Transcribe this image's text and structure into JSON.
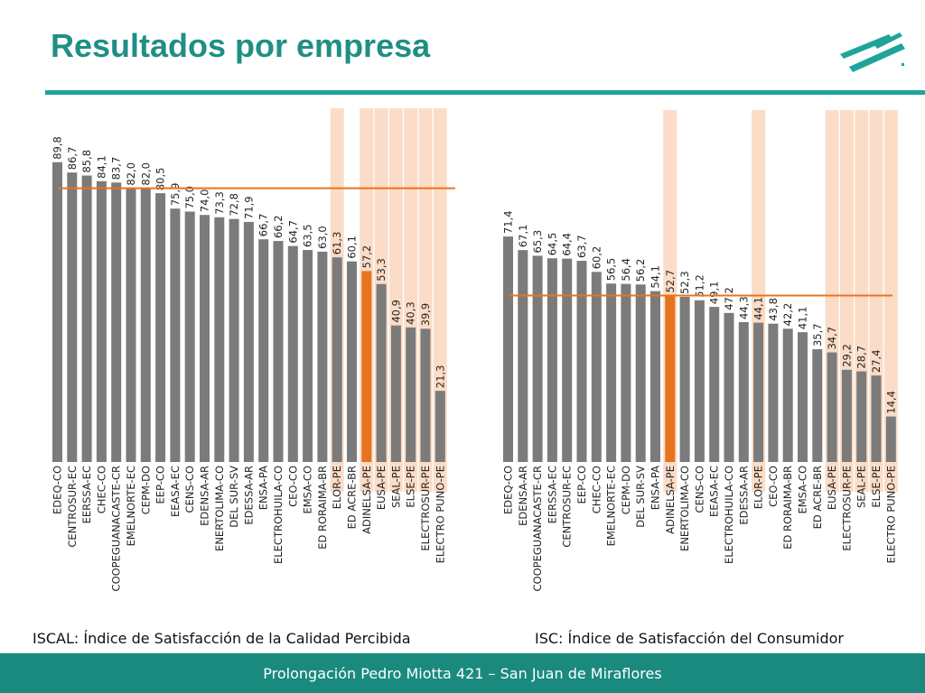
{
  "slide": {
    "title": "Resultados por empresa",
    "footer": "Prolongación Pedro Miotta 421 – San Juan de Miraflores"
  },
  "colors": {
    "bar": "#7b7b7b",
    "highlight_bar": "#e8731f",
    "reference_line": "#e8731f",
    "band": "#fbdcc6",
    "title": "#1f8f84",
    "accent": "#1fa49a"
  },
  "chart_data": [
    {
      "type": "bar",
      "caption": "ISCAL: Índice de Satisfacción de la Calidad Percibida",
      "ylim": [
        0,
        100
      ],
      "reference_value": 82,
      "categories": [
        "EDEQ-CO",
        "CENTROSUR-EC",
        "EERSSA-EC",
        "CHEC-CO",
        "COOPEGUANACASTE-CR",
        "EMELNORTE-EC",
        "CEPM-DO",
        "EEP-CO",
        "EEASA-EC",
        "CENS-CO",
        "EDENSA-AR",
        "ENERTOLIMA-CO",
        "DEL SUR-SV",
        "EDESSA-AR",
        "ENSA-PA",
        "ELECTROHUILA-CO",
        "CEO-CO",
        "EMSA-CO",
        "ED RORAIMA-BR",
        "ELOR-PE",
        "ED ACRE-BR",
        "ADINELSA-PE",
        "EUSA-PE",
        "SEAL-PE",
        "ELSE-PE",
        "ELECTROSUR-PE",
        "ELECTRO PUNO-PE"
      ],
      "values": [
        89.8,
        86.7,
        85.8,
        84.1,
        83.7,
        82.0,
        82.0,
        80.5,
        75.9,
        75.0,
        74.0,
        73.3,
        72.8,
        71.9,
        66.7,
        66.2,
        64.7,
        63.5,
        63.0,
        61.3,
        60.1,
        57.2,
        53.3,
        40.9,
        40.3,
        39.9,
        21.3
      ],
      "value_labels": [
        "89,8",
        "86,7",
        "85,8",
        "84,1",
        "83,7",
        "82,0",
        "82,0",
        "80,5",
        "75,9",
        "75,0",
        "74,0",
        "73,3",
        "72,8",
        "71,9",
        "66,7",
        "66,2",
        "64,7",
        "63,5",
        "63,0",
        "61,3",
        "60,1",
        "57,2",
        "53,3",
        "40,9",
        "40,3",
        "39,9",
        "21,3"
      ],
      "highlight": [
        "ADINELSA-PE"
      ],
      "bands": [
        "ELOR-PE",
        "ADINELSA-PE",
        "EUSA-PE",
        "SEAL-PE",
        "ELSE-PE",
        "ELECTROSUR-PE",
        "ELECTRO PUNO-PE"
      ]
    },
    {
      "type": "bar",
      "caption": "ISC: Índice de Satisfacción del Consumidor",
      "ylim": [
        0,
        100
      ],
      "reference_value": 52.7,
      "categories": [
        "EDEQ-CO",
        "EDENSA-AR",
        "COOPEGUANACASTE-CR",
        "EERSSA-EC",
        "CENTROSUR-EC",
        "EEP-CO",
        "CHEC-CO",
        "EMELNORTE-EC",
        "CEPM-DO",
        "DEL SUR-SV",
        "ENSA-PA",
        "ADINELSA-PE",
        "ENERTOLIMA-CO",
        "CENS-CO",
        "EEASA-EC",
        "ELECTROHUILA-CO",
        "EDESSA-AR",
        "ELOR-PE",
        "CEO-CO",
        "ED RORAIMA-BR",
        "EMSA-CO",
        "ED ACRE-BR",
        "EUSA-PE",
        "ELECTROSUR-PE",
        "SEAL-PE",
        "ELSE-PE",
        "ELECTRO PUNO-PE"
      ],
      "values": [
        71.4,
        67.1,
        65.3,
        64.5,
        64.4,
        63.7,
        60.2,
        56.5,
        56.4,
        56.2,
        54.1,
        52.7,
        52.3,
        51.2,
        49.1,
        47.2,
        44.3,
        44.1,
        43.8,
        42.2,
        41.1,
        35.7,
        34.7,
        29.2,
        28.7,
        27.4,
        14.4
      ],
      "value_labels": [
        "71,4",
        "67,1",
        "65,3",
        "64,5",
        "64,4",
        "63,7",
        "60,2",
        "56,5",
        "56,4",
        "56,2",
        "54,1",
        "52,7",
        "52,3",
        "51,2",
        "49,1",
        "47,2",
        "44,3",
        "44,1",
        "43,8",
        "42,2",
        "41,1",
        "35,7",
        "34,7",
        "29,2",
        "28,7",
        "27,4",
        "14,4"
      ],
      "highlight": [
        "ADINELSA-PE"
      ],
      "bands": [
        "ADINELSA-PE",
        "ELOR-PE",
        "EUSA-PE",
        "ELECTROSUR-PE",
        "SEAL-PE",
        "ELSE-PE",
        "ELECTRO PUNO-PE"
      ]
    }
  ]
}
